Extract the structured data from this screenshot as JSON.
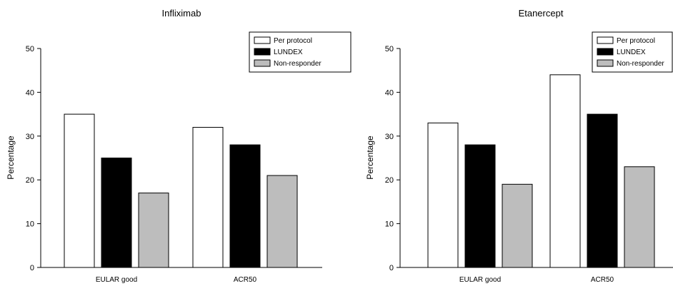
{
  "chart_data": [
    {
      "type": "bar",
      "title": "Infliximab",
      "xlabel": "",
      "ylabel": "Percentage",
      "ylim": [
        0,
        50
      ],
      "yticks": [
        0,
        10,
        20,
        30,
        40,
        50
      ],
      "categories": [
        "EULAR good",
        "ACR50"
      ],
      "series": [
        {
          "name": "Per protocol",
          "values": [
            35,
            32
          ],
          "color": "#ffffff"
        },
        {
          "name": "LUNDEX",
          "values": [
            25,
            28
          ],
          "color": "#000000"
        },
        {
          "name": "Non-responder",
          "values": [
            17,
            21
          ],
          "color": "#bdbdbd"
        }
      ],
      "grid": false,
      "legend_position": "top-right"
    },
    {
      "type": "bar",
      "title": "Etanercept",
      "xlabel": "",
      "ylabel": "Percentage",
      "ylim": [
        0,
        50
      ],
      "yticks": [
        0,
        10,
        20,
        30,
        40,
        50
      ],
      "categories": [
        "EULAR good",
        "ACR50"
      ],
      "series": [
        {
          "name": "Per protocol",
          "values": [
            33,
            44
          ],
          "color": "#ffffff"
        },
        {
          "name": "LUNDEX",
          "values": [
            28,
            35
          ],
          "color": "#000000"
        },
        {
          "name": "Non-responder",
          "values": [
            19,
            23
          ],
          "color": "#bdbdbd"
        }
      ],
      "grid": false,
      "legend_position": "top-right"
    }
  ]
}
